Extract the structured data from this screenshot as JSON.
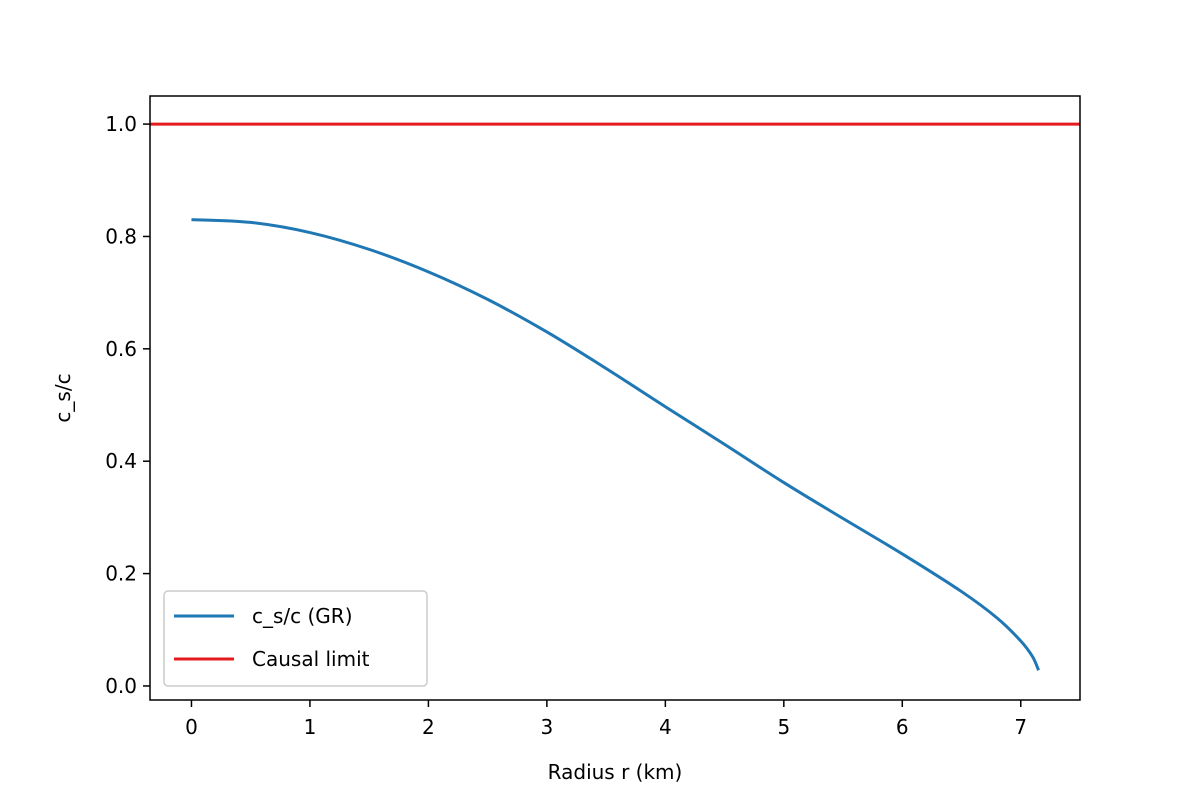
{
  "chart_data": {
    "type": "line",
    "xlabel": "Radius r (km)",
    "ylabel": "c_s/c",
    "xlim": [
      -0.35,
      7.5
    ],
    "ylim": [
      -0.025,
      1.05
    ],
    "xticks": [
      0,
      1,
      2,
      3,
      4,
      5,
      6,
      7
    ],
    "xtick_labels": [
      "0",
      "1",
      "2",
      "3",
      "4",
      "5",
      "6",
      "7"
    ],
    "yticks": [
      0.0,
      0.2,
      0.4,
      0.6,
      0.8,
      1.0
    ],
    "ytick_labels": [
      "0.0",
      "0.2",
      "0.4",
      "0.6",
      "0.8",
      "1.0"
    ],
    "grid": false,
    "legend_position": "lower-left",
    "series": [
      {
        "name": " c_s/c (GR)",
        "color": "#1f77b4",
        "x": [
          0,
          0.5,
          1,
          1.5,
          2,
          2.5,
          3,
          3.5,
          4,
          4.5,
          5,
          5.5,
          6,
          6.5,
          6.8,
          7.0,
          7.1,
          7.15
        ],
        "y": [
          0.83,
          0.825,
          0.807,
          0.777,
          0.737,
          0.688,
          0.63,
          0.565,
          0.497,
          0.43,
          0.362,
          0.298,
          0.235,
          0.168,
          0.121,
          0.08,
          0.052,
          0.028
        ]
      },
      {
        "name": "Causal limit",
        "color": "#e41a1c",
        "x": [
          -0.35,
          7.5
        ],
        "y": [
          1.0,
          1.0
        ]
      }
    ]
  }
}
